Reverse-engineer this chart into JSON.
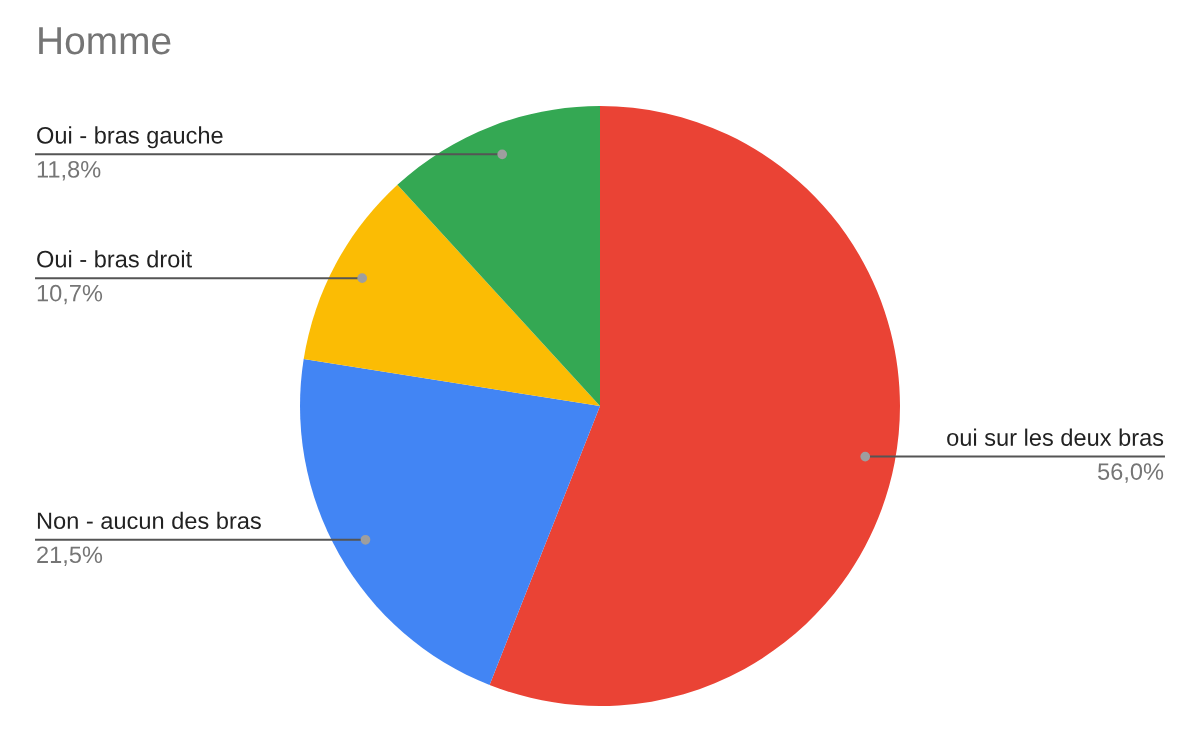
{
  "chart_data": {
    "type": "pie",
    "title": "Homme",
    "categories": [
      "oui sur les deux bras",
      "Non - aucun des bras",
      "Oui - bras droit",
      "Oui - bras gauche"
    ],
    "values": [
      56.0,
      21.5,
      10.7,
      11.8
    ],
    "colors": [
      "#ea4335",
      "#4285f4",
      "#fbbc04",
      "#34a853"
    ],
    "value_labels": [
      "56,0%",
      "21,5%",
      "10,7%",
      "11,8%"
    ],
    "legend": false
  }
}
